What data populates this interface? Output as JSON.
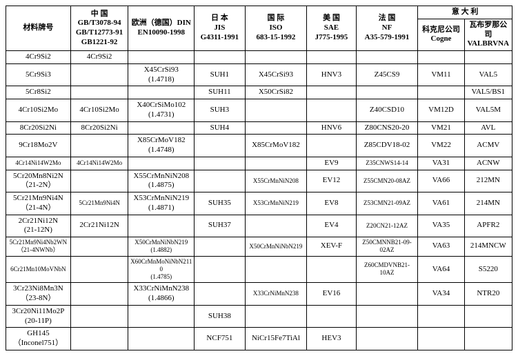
{
  "header": {
    "material_label": "材料牌号",
    "china": {
      "country": "中 国",
      "lines": [
        "GB/T3078-94",
        "GB/T12773-91",
        "GB1221-92"
      ]
    },
    "europe": {
      "country": "欧洲（德国）DIN",
      "std": "EN10090-1998"
    },
    "japan": {
      "country": "日 本",
      "std_a": "JIS",
      "std_b": "G4311-1991"
    },
    "intl": {
      "country": "国 际",
      "std_a": "ISO",
      "std_b": "683-15-1992"
    },
    "usa": {
      "country": "美 国",
      "std_a": "SAE",
      "std_b": "J775-1995"
    },
    "france": {
      "country": "法 国",
      "std_a": "NF",
      "std_b": "A35-579-1991"
    },
    "italy": {
      "country": "意 大 利",
      "cogne_a": "科克尼公司",
      "cogne_b": "Cogne",
      "val_a": "瓦布罗那公司",
      "val_b": "VALBRVNA"
    }
  },
  "rows": [
    {
      "name": "4Cr9Si2",
      "c1": "4Cr9Si2",
      "c2": "",
      "c3": "",
      "c4": "",
      "c5": "",
      "c6": "",
      "c7": "",
      "c8": ""
    },
    {
      "name": "5Cr9Si3",
      "c1": "",
      "c2": "X45CrSi93\n(1.4718)",
      "c3": "SUH1",
      "c4": "X45CrSi93",
      "c5": "HNV3",
      "c6": "Z45CS9",
      "c7": "VM11",
      "c8": "VAL5"
    },
    {
      "name": "5Cr8Si2",
      "c1": "",
      "c2": "",
      "c3": "SUH11",
      "c4": "X50CrSi82",
      "c5": "",
      "c6": "",
      "c7": "",
      "c8": "VAL5/BS1"
    },
    {
      "name": "4Cr10Si2Mo",
      "c1": "4Cr10Si2Mo",
      "c2": "X40CrSiMo102\n(1.4731)",
      "c3": "SUH3",
      "c4": "",
      "c5": "",
      "c6": "Z40CSD10",
      "c7": "VM12D",
      "c8": "VAL5M"
    },
    {
      "name": "8Cr20Si2Ni",
      "c1": "8Cr20Si2Ni",
      "c2": "",
      "c3": "SUH4",
      "c4": "",
      "c5": "HNV6",
      "c6": "Z80CNS20-20",
      "c7": "VM21",
      "c8": "AVL"
    },
    {
      "name": "9Cr18Mo2V",
      "c1": "",
      "c2": "X85CrMoV182\n(1.4748)",
      "c3": "",
      "c4": "X85CrMoV182",
      "c5": "",
      "c6": "Z85CDV18-02",
      "c7": "VM22",
      "c8": "ACMV"
    },
    {
      "name": "4Cr14Ni14W2Mo",
      "sm0": true,
      "c1": "4Cr14Ni14W2Mo",
      "sm1": true,
      "c2": "",
      "c3": "",
      "c4": "",
      "c5": "EV9",
      "c6": "Z35CNWS14-14",
      "sm6": true,
      "c7": "VA31",
      "c8": "ACNW"
    },
    {
      "name": "5Cr20Mn8Ni2N\n（21-2N）",
      "c1": "",
      "c2": "X55CrMnNiN208\n(1.4875)",
      "c3": "",
      "c4": "X55CrMnNiN208",
      "sm4": true,
      "c5": "EV12",
      "c6": "Z55CMN20-08AZ",
      "sm6": true,
      "c7": "VA66",
      "c8": "212MN"
    },
    {
      "name": "5Cr21Mn9Ni4N\n（21-4N）",
      "c1": "5Cr21Mn9Ni4N",
      "sm1": true,
      "c2": "X53CrMnNiN219\n(1.4871)",
      "c3": "SUH35",
      "c4": "X53CrMnNiN219",
      "sm4": true,
      "c5": "EV8",
      "c6": "Z53CMN21-09AZ",
      "sm6": true,
      "c7": "VA61",
      "c8": "214MN"
    },
    {
      "name": "2Cr21Ni12N\n(21-12N)",
      "c1": "2Cr21Ni12N",
      "c2": "",
      "c3": "SUH37",
      "c4": "",
      "c5": "EV4",
      "c6": "Z20CN21-12AZ",
      "sm6": true,
      "c7": "VA35",
      "c8": "APFR2"
    },
    {
      "name": "5Cr21Mn9Ni4Nb2WN\n（21-4NWNb）",
      "sm0": true,
      "c1": "",
      "c2": "X50CrMnNiNbN219\n(1.4882)",
      "sm2": true,
      "c3": "",
      "c4": "X50CrMnNiNbN219",
      "sm4": true,
      "c5": "XEV-F",
      "c6": "Z50CMNNB21-09-02AZ",
      "sm6": true,
      "c7": "VA63",
      "c8": "214MNCW"
    },
    {
      "name": "6Cr21Mn10MoVNbN",
      "sm0": true,
      "c1": "",
      "c2": "X60CrMnMoNiNbN2110\n(1.4785)",
      "sm2": true,
      "c3": "",
      "c4": "",
      "c5": "",
      "c6": "Z60CMDVNB21-10AZ",
      "sm6": true,
      "c7": "VA64",
      "c8": "S5220"
    },
    {
      "name": "3Cr23Ni8Mn3N\n（23-8N）",
      "c1": "",
      "c2": "X33CrNiMnN238\n(1.4866)",
      "c3": "",
      "c4": "X33CrNiMnN238",
      "sm4": true,
      "c5": "EV16",
      "c6": "",
      "c7": "VA34",
      "c8": "NTR20"
    },
    {
      "name": "3Cr20Ni11Mo2P\n(20-11P)",
      "c1": "",
      "c2": "",
      "c3": "SUH38",
      "c4": "",
      "c5": "",
      "c6": "",
      "c7": "",
      "c8": ""
    },
    {
      "name": "GH145\n（Inconel751）",
      "c1": "",
      "c2": "",
      "c3": "NCF751",
      "c4": "NiCr15Fe7TiAl",
      "c5": "HEV3",
      "c6": "",
      "c7": "",
      "c8": ""
    }
  ]
}
